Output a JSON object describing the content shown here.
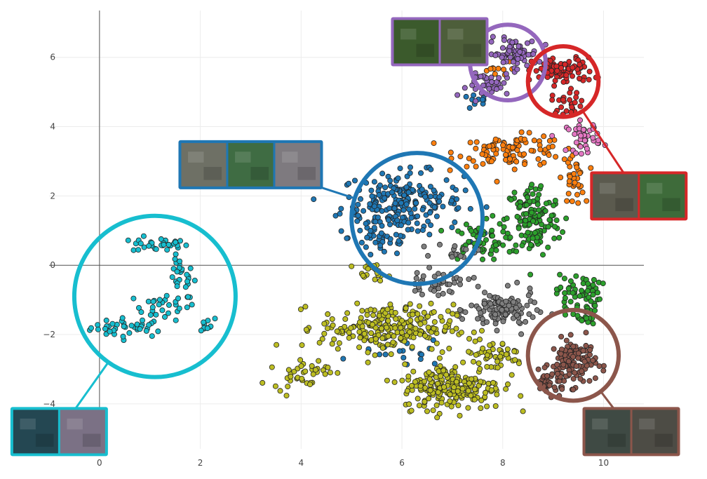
{
  "chart_data": {
    "type": "scatter",
    "title": "",
    "xlabel": "",
    "ylabel": "",
    "xlim": [
      -1.0,
      10.8
    ],
    "ylim": [
      -5.5,
      7.35
    ],
    "grid": true,
    "zero_lines": true,
    "x_ticks": [
      {
        "value": 0,
        "label": "0"
      },
      {
        "value": 2,
        "label": "2"
      },
      {
        "value": 4,
        "label": "4"
      },
      {
        "value": 6,
        "label": "6"
      },
      {
        "value": 8,
        "label": "8"
      },
      {
        "value": 10,
        "label": "10"
      }
    ],
    "y_ticks": [
      {
        "value": -4,
        "label": "−4"
      },
      {
        "value": -2,
        "label": "−2"
      },
      {
        "value": 0,
        "label": "0"
      },
      {
        "value": 2,
        "label": "2"
      },
      {
        "value": 4,
        "label": "4"
      },
      {
        "value": 6,
        "label": "6"
      }
    ],
    "colors": {
      "cyan": "#17becf",
      "blue": "#1f77b4",
      "orange": "#ff7f0e",
      "green": "#2ca02c",
      "red": "#d62728",
      "purple": "#9467bd",
      "brown": "#8c564b",
      "pink": "#e377c2",
      "gray": "#7f7f7f",
      "olive": "#bcbd22"
    },
    "clusters": [
      {
        "color": "cyan",
        "blobs": [
          {
            "cx": 0.6,
            "cy": -1.8,
            "rx": 0.7,
            "ry": 0.25,
            "n": 40
          },
          {
            "cx": 1.3,
            "cy": -1.2,
            "rx": 0.55,
            "ry": 0.35,
            "n": 30
          },
          {
            "cx": 1.6,
            "cy": -0.3,
            "rx": 0.25,
            "ry": 0.45,
            "n": 25
          },
          {
            "cx": 1.2,
            "cy": 0.6,
            "rx": 0.5,
            "ry": 0.2,
            "n": 30
          },
          {
            "cx": 2.0,
            "cy": -1.7,
            "rx": 0.35,
            "ry": 0.2,
            "n": 10
          }
        ]
      },
      {
        "color": "blue",
        "blobs": [
          {
            "cx": 6.0,
            "cy": 1.8,
            "rx": 1.1,
            "ry": 0.8,
            "n": 220
          },
          {
            "cx": 5.6,
            "cy": 0.8,
            "rx": 0.6,
            "ry": 0.5,
            "n": 40
          },
          {
            "cx": 7.5,
            "cy": 4.7,
            "rx": 0.3,
            "ry": 0.2,
            "n": 10
          },
          {
            "cx": 6.0,
            "cy": -2.5,
            "rx": 0.8,
            "ry": 0.4,
            "n": 20
          }
        ]
      },
      {
        "color": "orange",
        "blobs": [
          {
            "cx": 8.2,
            "cy": 3.3,
            "rx": 1.0,
            "ry": 0.4,
            "n": 100
          },
          {
            "cx": 9.4,
            "cy": 2.5,
            "rx": 0.2,
            "ry": 0.7,
            "n": 35
          },
          {
            "cx": 7.8,
            "cy": 5.6,
            "rx": 0.3,
            "ry": 0.25,
            "n": 12
          }
        ]
      },
      {
        "color": "green",
        "blobs": [
          {
            "cx": 8.6,
            "cy": 1.3,
            "rx": 0.5,
            "ry": 1.0,
            "n": 140
          },
          {
            "cx": 7.5,
            "cy": 0.7,
            "rx": 0.5,
            "ry": 0.5,
            "n": 60
          },
          {
            "cx": 9.5,
            "cy": -0.8,
            "rx": 0.4,
            "ry": 0.5,
            "n": 60
          },
          {
            "cx": 9.6,
            "cy": -1.5,
            "rx": 0.3,
            "ry": 0.3,
            "n": 20
          }
        ]
      },
      {
        "color": "red",
        "blobs": [
          {
            "cx": 9.2,
            "cy": 5.6,
            "rx": 0.55,
            "ry": 0.35,
            "n": 90
          },
          {
            "cx": 9.3,
            "cy": 4.7,
            "rx": 0.3,
            "ry": 0.3,
            "n": 25
          }
        ]
      },
      {
        "color": "purple",
        "blobs": [
          {
            "cx": 8.2,
            "cy": 6.1,
            "rx": 0.45,
            "ry": 0.4,
            "n": 70
          },
          {
            "cx": 7.8,
            "cy": 5.2,
            "rx": 0.45,
            "ry": 0.3,
            "n": 35
          }
        ]
      },
      {
        "color": "pink",
        "blobs": [
          {
            "cx": 9.6,
            "cy": 3.7,
            "rx": 0.3,
            "ry": 0.4,
            "n": 40
          }
        ]
      },
      {
        "color": "brown",
        "blobs": [
          {
            "cx": 9.4,
            "cy": -2.8,
            "rx": 0.4,
            "ry": 0.6,
            "n": 120
          },
          {
            "cx": 8.9,
            "cy": -3.4,
            "rx": 0.3,
            "ry": 0.3,
            "n": 35
          }
        ]
      },
      {
        "color": "gray",
        "blobs": [
          {
            "cx": 8.0,
            "cy": -1.3,
            "rx": 0.6,
            "ry": 0.5,
            "n": 110
          },
          {
            "cx": 6.7,
            "cy": -0.5,
            "rx": 0.6,
            "ry": 0.3,
            "n": 40
          },
          {
            "cx": 7.1,
            "cy": 0.4,
            "rx": 0.4,
            "ry": 0.2,
            "n": 15
          }
        ]
      },
      {
        "color": "olive",
        "blobs": [
          {
            "cx": 5.7,
            "cy": -1.8,
            "rx": 1.2,
            "ry": 0.6,
            "n": 240
          },
          {
            "cx": 7.0,
            "cy": -3.5,
            "rx": 0.9,
            "ry": 0.6,
            "n": 220
          },
          {
            "cx": 7.8,
            "cy": -2.6,
            "rx": 0.6,
            "ry": 0.4,
            "n": 50
          },
          {
            "cx": 4.0,
            "cy": -3.1,
            "rx": 0.5,
            "ry": 0.4,
            "n": 40
          },
          {
            "cx": 5.4,
            "cy": -0.2,
            "rx": 0.3,
            "ry": 0.2,
            "n": 20
          }
        ]
      }
    ],
    "annotations": [
      {
        "id": "purple",
        "color": "purple",
        "circle": {
          "cx": 8.1,
          "cy": 5.85,
          "r": 0.75
        },
        "thumbs": [
          "#3b5a2c",
          "#4d5e3a"
        ],
        "card_center": [
          6.75,
          6.45
        ]
      },
      {
        "id": "red",
        "color": "red",
        "circle": {
          "cx": 9.2,
          "cy": 5.3,
          "r": 0.7
        },
        "thumbs": [
          "#5b5a4e",
          "#3e6b3a"
        ],
        "card_center": [
          10.7,
          2.0
        ]
      },
      {
        "id": "blue",
        "color": "blue",
        "circle": {
          "cx": 6.3,
          "cy": 1.35,
          "r": 1.3
        },
        "thumbs": [
          "#6e7065",
          "#3f6c43",
          "#7e7a7f"
        ],
        "card_center": [
          3.0,
          2.9
        ]
      },
      {
        "id": "cyan",
        "color": "cyan",
        "circle": {
          "cx": 1.1,
          "cy": -0.9,
          "r": 1.6
        },
        "thumbs": [
          "#244752",
          "#7b7185"
        ],
        "card_center": [
          -0.8,
          -4.8
        ]
      },
      {
        "id": "brown",
        "color": "brown",
        "circle": {
          "cx": 9.4,
          "cy": -2.6,
          "r": 0.9
        },
        "thumbs": [
          "#3f4a44",
          "#4d4c45"
        ],
        "card_center": [
          10.55,
          -4.8
        ]
      }
    ]
  }
}
